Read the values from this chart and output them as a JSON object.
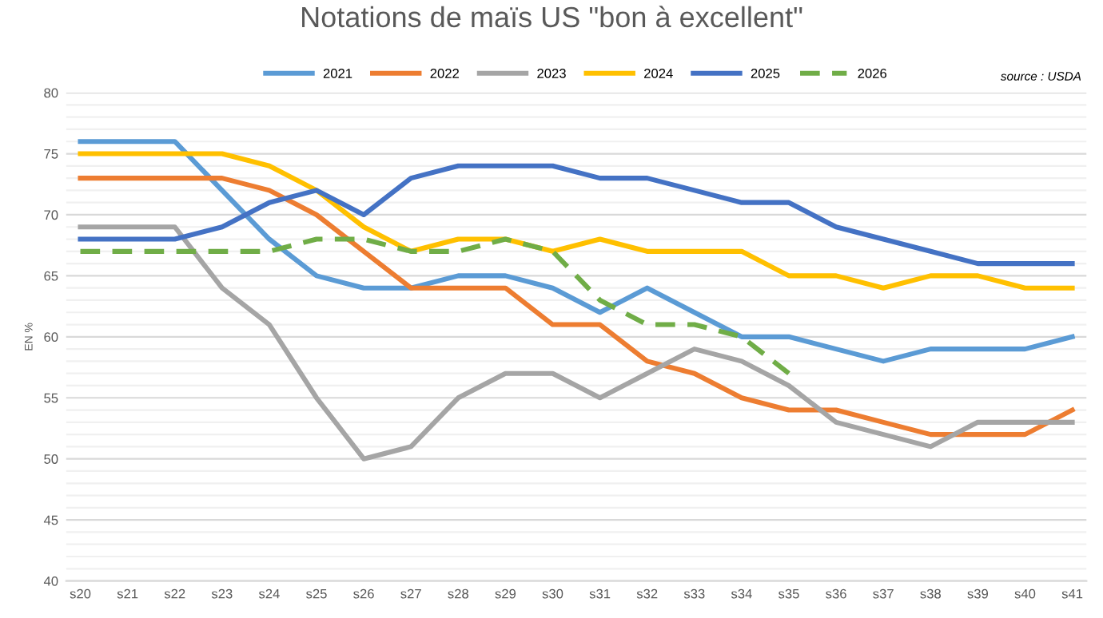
{
  "chart_data": {
    "type": "line",
    "title": "Notations de maïs US \"bon à excellent\"",
    "ylabel": "EN %",
    "annotations": [
      "source : USDA"
    ],
    "categories": [
      "s20",
      "s21",
      "s22",
      "s23",
      "s24",
      "s25",
      "s26",
      "s27",
      "s28",
      "s29",
      "s30",
      "s31",
      "s32",
      "s33",
      "s34",
      "s35",
      "s36",
      "s37",
      "s38",
      "s39",
      "s40",
      "s41"
    ],
    "series": [
      {
        "name": "2021",
        "color": "#5b9bd5",
        "values": [
          76,
          76,
          76,
          72,
          68,
          65,
          64,
          64,
          65,
          65,
          64,
          62,
          64,
          62,
          60,
          60,
          59,
          58,
          59,
          59,
          59,
          60
        ]
      },
      {
        "name": "2022",
        "color": "#ed7d31",
        "values": [
          73,
          73,
          73,
          73,
          72,
          70,
          67,
          64,
          64,
          64,
          61,
          61,
          58,
          57,
          55,
          54,
          54,
          53,
          52,
          52,
          52,
          54
        ]
      },
      {
        "name": "2023",
        "color": "#a5a5a5",
        "values": [
          69,
          69,
          69,
          64,
          61,
          55,
          50,
          51,
          55,
          57,
          57,
          55,
          57,
          59,
          58,
          56,
          53,
          52,
          51,
          53,
          53,
          53
        ]
      },
      {
        "name": "2024",
        "color": "#ffc000",
        "values": [
          75,
          75,
          75,
          75,
          74,
          72,
          69,
          67,
          68,
          68,
          67,
          68,
          67,
          67,
          67,
          65,
          65,
          64,
          65,
          65,
          64,
          64
        ]
      },
      {
        "name": "2025",
        "color": "#4472c4",
        "values": [
          68,
          68,
          68,
          69,
          71,
          72,
          70,
          73,
          74,
          74,
          74,
          73,
          73,
          72,
          71,
          71,
          69,
          68,
          67,
          66,
          66,
          66
        ]
      },
      {
        "name": "2026",
        "color": "#70ad47",
        "line_style": "dashed",
        "values": [
          67,
          67,
          67,
          67,
          67,
          68,
          68,
          67,
          67,
          68,
          67,
          63,
          61,
          61,
          60,
          57,
          null,
          null,
          null,
          null,
          null,
          null
        ]
      }
    ],
    "ylim": [
      40,
      80
    ],
    "yticks": [
      40,
      {
        "value": 41,
        "label": null
      },
      {
        "value": 42,
        "label": null
      },
      {
        "value": 43,
        "label": null
      },
      {
        "value": 44,
        "label": null
      },
      45,
      {
        "value": 46,
        "label": null
      },
      {
        "value": 47,
        "label": null
      },
      {
        "value": 48,
        "label": null
      },
      {
        "value": 49,
        "label": null
      },
      50,
      {
        "value": 51,
        "label": null
      },
      {
        "value": 52,
        "label": null
      },
      {
        "value": 53,
        "label": null
      },
      {
        "value": 54,
        "label": null
      },
      55,
      {
        "value": 56,
        "label": null
      },
      {
        "value": 57,
        "label": null
      },
      {
        "value": 58,
        "label": null
      },
      {
        "value": 59,
        "label": null
      },
      60,
      {
        "value": 61,
        "label": null
      },
      {
        "value": 62,
        "label": null
      },
      {
        "value": 63,
        "label": null
      },
      {
        "value": 64,
        "label": null
      },
      65,
      {
        "value": 66,
        "label": null
      },
      {
        "value": 67,
        "label": null
      },
      {
        "value": 68,
        "label": null
      },
      {
        "value": 69,
        "label": null
      },
      70,
      {
        "value": 71,
        "label": null
      },
      {
        "value": 72,
        "label": null
      },
      {
        "value": 73,
        "label": null
      },
      {
        "value": 74,
        "label": null
      },
      75,
      {
        "value": 76,
        "label": null
      },
      {
        "value": 77,
        "label": null
      },
      {
        "value": 78,
        "label": null
      },
      {
        "value": 79,
        "label": null
      },
      80
    ],
    "grid": "y",
    "legend": "top",
    "marker": "none",
    "line_style": "solid"
  }
}
